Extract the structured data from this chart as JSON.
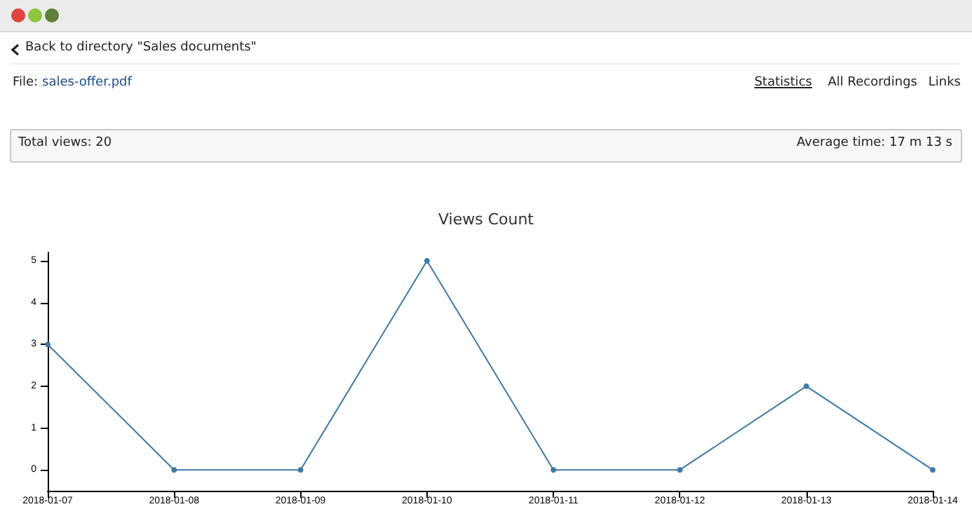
{
  "chart_data": {
    "type": "line",
    "title": "Views Count",
    "annotations": [
      "Back to directory \"Sales documents\"",
      "File:",
      "sales-offer.pdf",
      "Statistics",
      "All Recordings",
      "Links",
      "Total views: 20",
      "Average time: 17 m 13 s"
    ],
    "categories": [
      "2018-01-07",
      "2018-01-08",
      "2018-01-09",
      "2018-01-10",
      "2018-01-11",
      "2018-01-12",
      "2018-01-13",
      "2018-01-14"
    ],
    "series": [
      {
        "color": "#3f79a6",
        "values": [
          3,
          0,
          0,
          5,
          0,
          0,
          2,
          0
        ]
      }
    ],
    "ylim": [
      -0.5,
      5.2
    ],
    "yticks": [
      0,
      1,
      2,
      3,
      4,
      5
    ],
    "grid": false,
    "marker": "circle",
    "line_style": "solid"
  }
}
